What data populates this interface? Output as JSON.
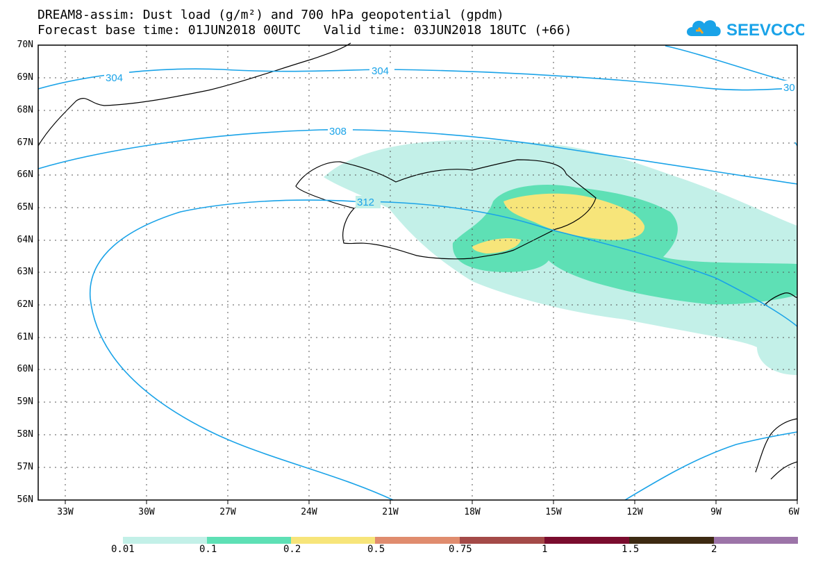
{
  "title": {
    "line1": "DREAM8-assim: Dust load (g/m²) and 700 hPa geopotential (gpdm)",
    "line2": "Forecast base time: 01JUN2018 00UTC   Valid time: 03JUN2018 18UTC (+66)"
  },
  "logo": {
    "text": "SEEVCCC",
    "color": "#1aa3e8",
    "icon": "cloud-icon"
  },
  "axes": {
    "lat_labels": [
      "70N",
      "69N",
      "68N",
      "67N",
      "66N",
      "65N",
      "64N",
      "63N",
      "62N",
      "61N",
      "60N",
      "59N",
      "58N",
      "57N",
      "56N"
    ],
    "lon_labels": [
      "33W",
      "30W",
      "27W",
      "24W",
      "21W",
      "18W",
      "15W",
      "12W",
      "9W",
      "6W"
    ],
    "lat_range": [
      56,
      70
    ],
    "lon_range": [
      -34.2,
      -6
    ],
    "grid": true
  },
  "contours": {
    "color": "#1aa3e8",
    "labels": [
      "304",
      "304",
      "30",
      "308",
      "312"
    ]
  },
  "colorbar": {
    "labels": [
      "0.01",
      "0.1",
      "0.2",
      "0.5",
      "0.75",
      "1",
      "1.5",
      "2"
    ],
    "colors": [
      "#c3f0e8",
      "#5ee0b5",
      "#f7e57a",
      "#e08c6e",
      "#a44a48",
      "#7a0c2e",
      "#3d2a12",
      "#9c74a8"
    ]
  },
  "dust_levels": [
    "0.01-0.1",
    "0.1-0.2",
    "0.2-0.5"
  ]
}
